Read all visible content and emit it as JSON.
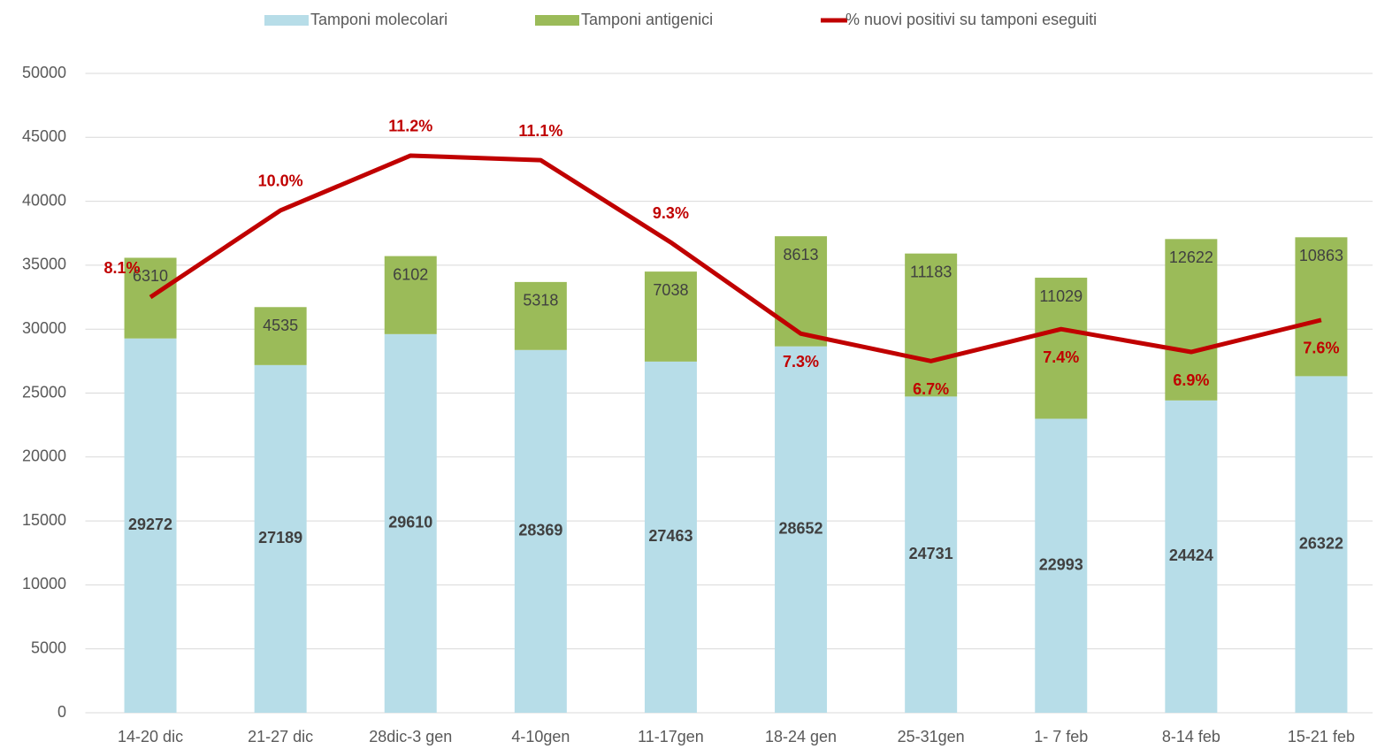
{
  "chart_data": {
    "type": "bar-line",
    "categories": [
      "14-20 dic",
      "21-27 dic",
      "28dic-3 gen",
      "4-10gen",
      "11-17gen",
      "18-24 gen",
      "25-31gen",
      "1- 7 feb",
      "8-14 feb",
      "15-21 feb"
    ],
    "series": [
      {
        "name": "Tamponi molecolari",
        "color": "#b7dde8",
        "type": "bar",
        "values": [
          29272,
          27189,
          29610,
          28369,
          27463,
          28652,
          24731,
          22993,
          24424,
          26322
        ]
      },
      {
        "name": "Tamponi antigenici",
        "color": "#9bbb59",
        "type": "bar",
        "values": [
          6310,
          4535,
          6102,
          5318,
          7038,
          8613,
          11183,
          11029,
          12622,
          10863
        ]
      },
      {
        "name": "% nuovi positivi su tamponi eseguiti",
        "color": "#c00000",
        "type": "line",
        "axis": "y2",
        "values": [
          8.1,
          10.0,
          11.2,
          11.1,
          9.3,
          7.3,
          6.7,
          7.4,
          6.9,
          7.6
        ],
        "value_labels": [
          "8.1%",
          "10.0%",
          "11.2%",
          "11.1%",
          "9.3%",
          "7.3%",
          "6.7%",
          "7.4%",
          "6.9%",
          "7.6%"
        ]
      }
    ],
    "ylim": [
      0,
      50000
    ],
    "yticks": [
      0,
      5000,
      10000,
      15000,
      20000,
      25000,
      30000,
      35000,
      40000,
      45000,
      50000
    ],
    "y2lim": [
      -1,
      13
    ],
    "grid": true,
    "legend": "top"
  }
}
